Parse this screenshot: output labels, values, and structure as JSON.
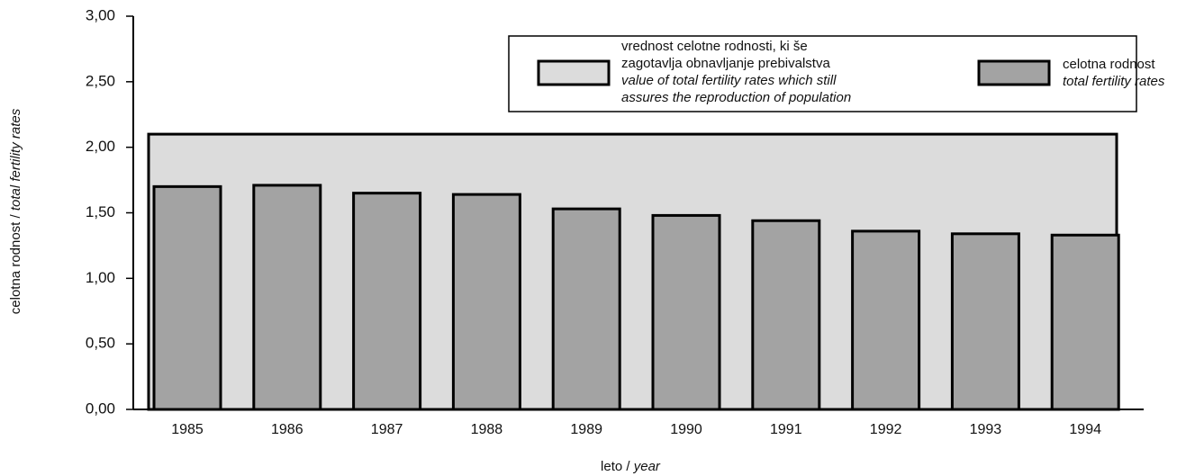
{
  "chart_data": {
    "type": "bar",
    "categories": [
      "1985",
      "1986",
      "1987",
      "1988",
      "1989",
      "1990",
      "1991",
      "1992",
      "1993",
      "1994"
    ],
    "series": [
      {
        "name": [
          "celotna rodnost",
          "total fertility rates"
        ],
        "color": "#a3a3a3",
        "values": [
          1.7,
          1.71,
          1.65,
          1.64,
          1.53,
          1.48,
          1.44,
          1.36,
          1.34,
          1.33
        ]
      }
    ],
    "reference": {
      "name": [
        "vrednost celotne rodnosti, ki še",
        "zagotavlja obnavljanje prebivalstva",
        "value of total fertility rates which still",
        "assures the reproduction of population"
      ],
      "value": 2.1,
      "color": "#dcdcdc"
    },
    "ylabel": [
      "celotna rodnost /",
      "total fertility rates"
    ],
    "xlabel": [
      "leto /",
      "year"
    ],
    "ylim": [
      0,
      3
    ],
    "yticks": [
      {
        "value": 0,
        "label": "0,00"
      },
      {
        "value": 0.5,
        "label": "0,50"
      },
      {
        "value": 1,
        "label": "1,00"
      },
      {
        "value": 1.5,
        "label": "1,50"
      },
      {
        "value": 2,
        "label": "2,00"
      },
      {
        "value": 2.5,
        "label": "2,50"
      },
      {
        "value": 3,
        "label": "3,00"
      }
    ]
  }
}
